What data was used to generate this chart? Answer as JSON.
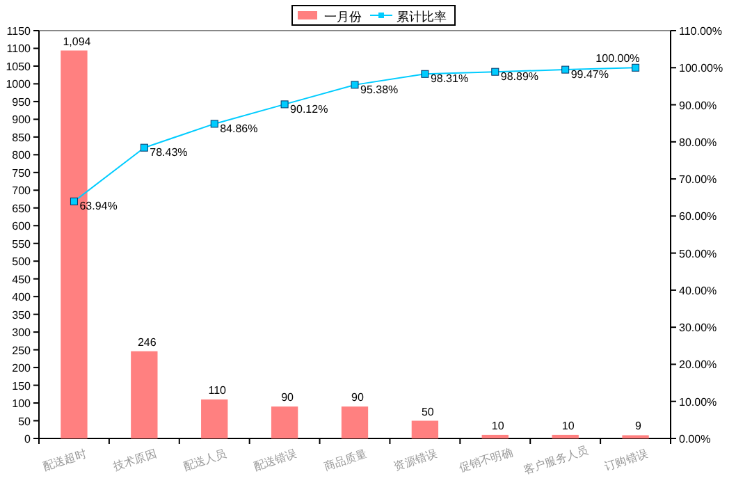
{
  "chart_data": {
    "type": "bar",
    "categories": [
      "配送超时",
      "技术原因",
      "配送人员",
      "配送错误",
      "商品质量",
      "资源错误",
      "促销不明确",
      "客户服务人员",
      "订购错误"
    ],
    "series": [
      {
        "name": "一月份",
        "color": "#ff8080",
        "values": [
          1094,
          246,
          110,
          90,
          90,
          50,
          10,
          10,
          9
        ],
        "value_labels": [
          "1,094",
          "246",
          "110",
          "90",
          "90",
          "50",
          "10",
          "10",
          "9"
        ]
      },
      {
        "name": "累计比率",
        "type": "line",
        "axis": "y2",
        "color": "#00ccff",
        "marker": "square",
        "values": [
          63.94,
          78.43,
          84.86,
          90.12,
          95.38,
          98.31,
          98.89,
          99.47,
          100
        ],
        "value_labels": [
          "63.94%",
          "78.43%",
          "84.86%",
          "90.12%",
          "95.38%",
          "98.31%",
          "98.89%",
          "99.47%",
          "100.00%"
        ]
      }
    ],
    "ylim": [
      0,
      1150
    ],
    "yticks": [
      0,
      50,
      100,
      150,
      200,
      250,
      300,
      350,
      400,
      450,
      500,
      550,
      600,
      650,
      700,
      750,
      800,
      850,
      900,
      950,
      1000,
      1050,
      1100,
      1150
    ],
    "y2lim": [
      0,
      110
    ],
    "y2ticks": [
      {
        "value": 0,
        "label": "0.00%"
      },
      {
        "value": 10,
        "label": "10.00%"
      },
      {
        "value": 20,
        "label": "20.00%"
      },
      {
        "value": 30,
        "label": "30.00%"
      },
      {
        "value": 40,
        "label": "40.00%"
      },
      {
        "value": 50,
        "label": "50.00%"
      },
      {
        "value": 60,
        "label": "60.00%"
      },
      {
        "value": 70,
        "label": "70.00%"
      },
      {
        "value": 80,
        "label": "80.00%"
      },
      {
        "value": 90,
        "label": "90.00%"
      },
      {
        "value": 100,
        "label": "100.00%"
      },
      {
        "value": 110,
        "label": "110.00%"
      }
    ],
    "legend": "top",
    "grid": false
  }
}
